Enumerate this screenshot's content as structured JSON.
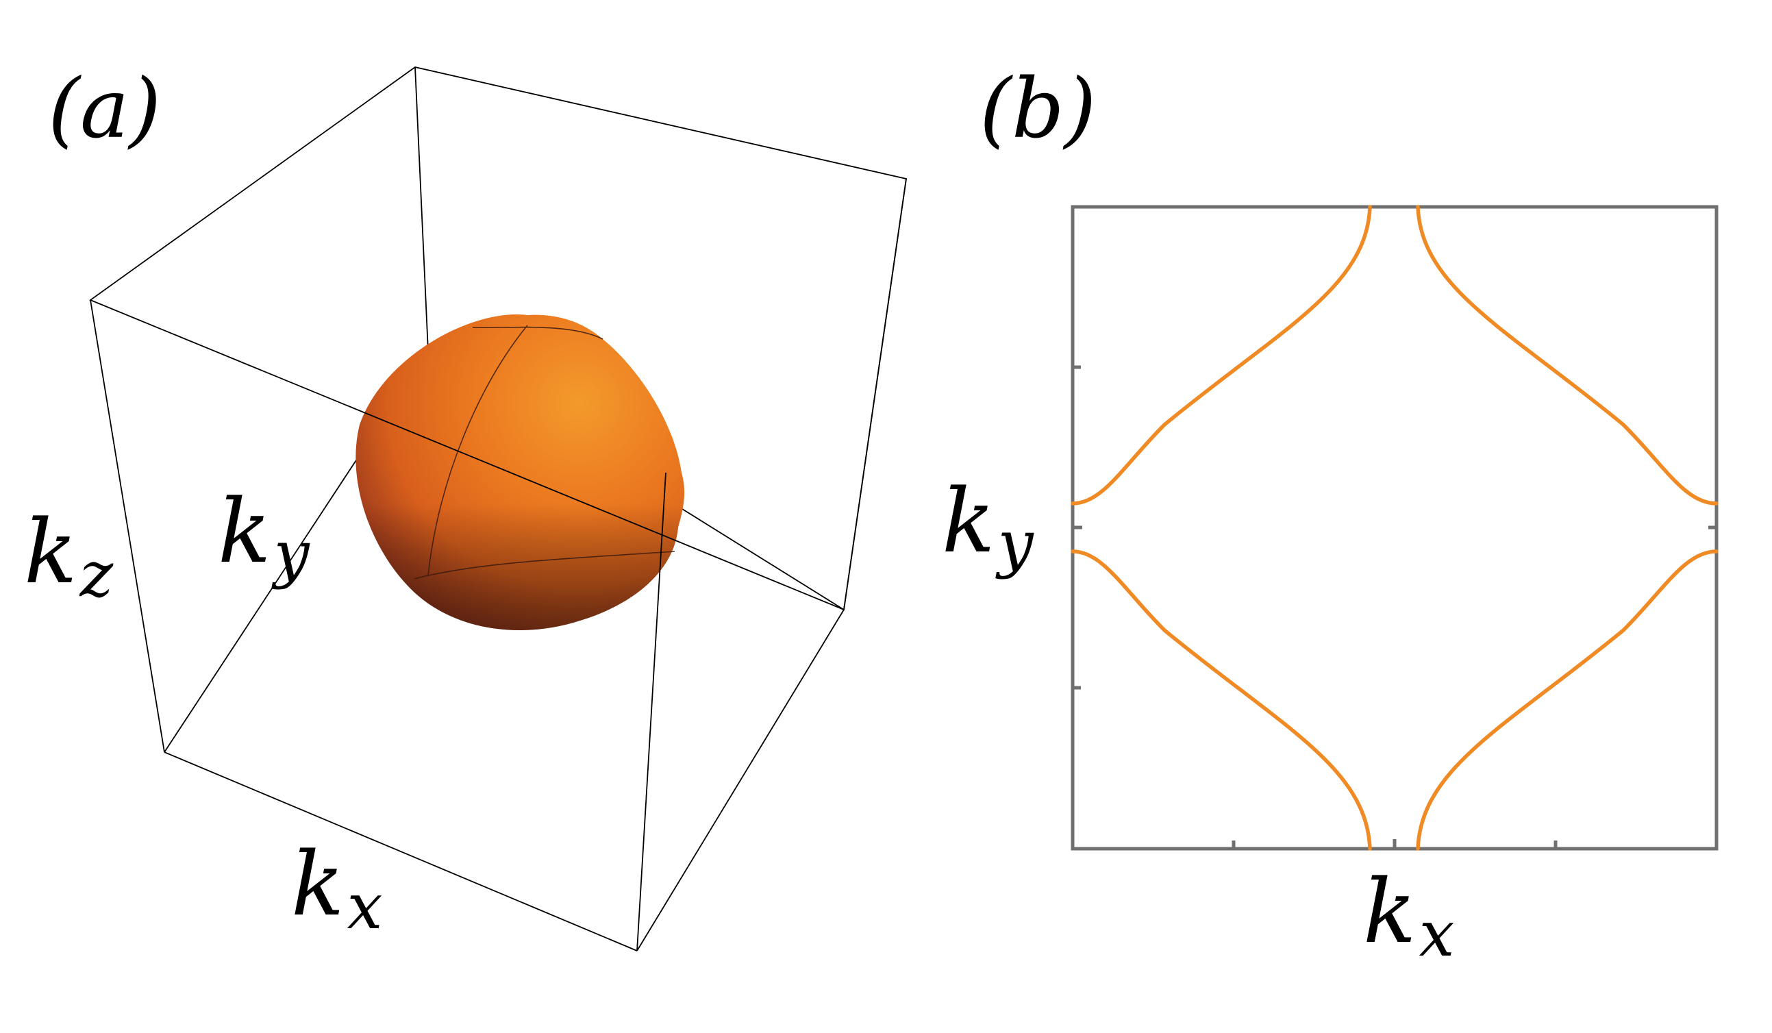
{
  "panel_a": {
    "label": "(a)",
    "axis_x": "k",
    "axis_x_sub": "x",
    "axis_y": "k",
    "axis_y_sub": "y",
    "axis_z": "k",
    "axis_z_sub": "z"
  },
  "panel_b": {
    "label": "(b)",
    "axis_x": "k",
    "axis_x_sub": "x",
    "axis_y": "k",
    "axis_y_sub": "y"
  },
  "colors": {
    "surface": "#e56a1f",
    "contour": "#f08a24",
    "frame": "#707070",
    "box": "#000000"
  }
}
